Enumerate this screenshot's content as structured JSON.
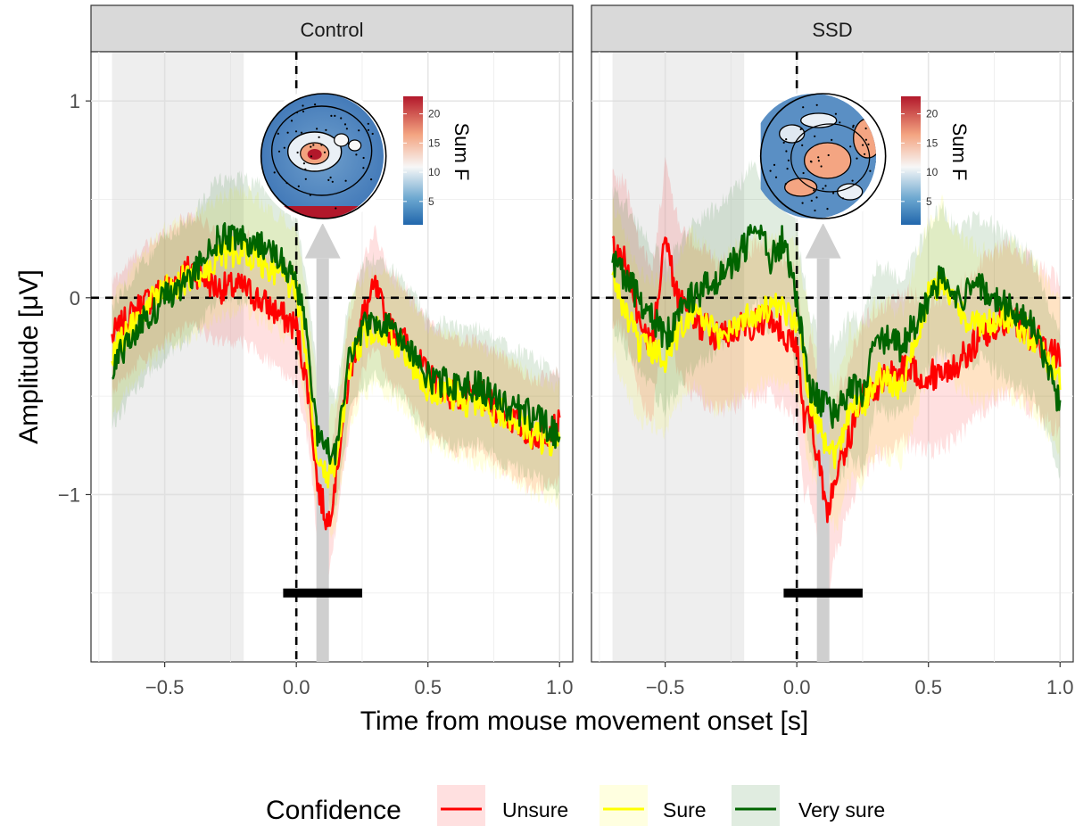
{
  "chart_data": {
    "type": "line",
    "xlabel": "Time from mouse movement onset [s]",
    "ylabel": "Amplitude [μV]",
    "xlim": [
      -0.78,
      1.05
    ],
    "ylim": [
      -1.85,
      1.25
    ],
    "x_ticks": [
      -0.5,
      0.0,
      0.5,
      1.0
    ],
    "x_tick_labels": [
      "−0.5",
      "0.0",
      "0.5",
      "1.0"
    ],
    "y_ticks": [
      -1,
      0,
      1
    ],
    "y_tick_labels": [
      "−1",
      "0",
      "1"
    ],
    "grid": true,
    "baseline_window": [
      -0.7,
      -0.2
    ],
    "reference_lines": {
      "x": 0,
      "y": 0
    },
    "legend": {
      "title": "Confidence",
      "position": "bottom",
      "entries": [
        {
          "name": "Unsure",
          "color": "#ff0000"
        },
        {
          "name": "Sure",
          "color": "#ffff00"
        },
        {
          "name": "Very sure",
          "color": "#006400"
        }
      ]
    },
    "colorbar": {
      "label": "Sum F",
      "ticks": [
        5,
        10,
        15,
        20
      ],
      "tick_labels": [
        "5",
        "10",
        "15",
        "20"
      ],
      "range": [
        1,
        23
      ],
      "colors": [
        "#2166ac",
        "#f7f7f7",
        "#b2182b"
      ]
    },
    "panels": [
      {
        "title": "Control",
        "significant_window": [
          -0.05,
          0.25
        ],
        "topomap_time": 0.1,
        "series": [
          {
            "name": "Unsure",
            "color": "#ff0000",
            "x": [
              -0.7,
              -0.6,
              -0.5,
              -0.4,
              -0.3,
              -0.2,
              -0.1,
              0.0,
              0.05,
              0.08,
              0.1,
              0.12,
              0.15,
              0.2,
              0.25,
              0.3,
              0.35,
              0.4,
              0.5,
              0.6,
              0.7,
              0.8,
              0.9,
              1.0
            ],
            "values": [
              -0.2,
              -0.05,
              0.05,
              0.15,
              0.05,
              0.05,
              -0.05,
              -0.15,
              -0.5,
              -0.95,
              -1.05,
              -1.15,
              -0.9,
              -0.4,
              -0.1,
              0.05,
              -0.15,
              -0.2,
              -0.4,
              -0.5,
              -0.5,
              -0.6,
              -0.7,
              -0.65
            ],
            "ci_width": 0.28
          },
          {
            "name": "Sure",
            "color": "#ffff00",
            "x": [
              -0.7,
              -0.6,
              -0.5,
              -0.4,
              -0.3,
              -0.2,
              -0.1,
              0.0,
              0.05,
              0.08,
              0.1,
              0.12,
              0.15,
              0.2,
              0.25,
              0.3,
              0.35,
              0.4,
              0.5,
              0.6,
              0.7,
              0.8,
              0.9,
              1.0
            ],
            "values": [
              -0.3,
              -0.1,
              0.05,
              0.1,
              0.2,
              0.25,
              0.15,
              0.05,
              -0.4,
              -0.8,
              -0.85,
              -0.9,
              -0.85,
              -0.35,
              -0.2,
              -0.15,
              -0.2,
              -0.25,
              -0.45,
              -0.5,
              -0.55,
              -0.6,
              -0.7,
              -0.75
            ],
            "ci_width": 0.3
          },
          {
            "name": "Very sure",
            "color": "#006400",
            "x": [
              -0.7,
              -0.6,
              -0.5,
              -0.4,
              -0.3,
              -0.2,
              -0.1,
              0.0,
              0.05,
              0.08,
              0.1,
              0.12,
              0.15,
              0.2,
              0.25,
              0.3,
              0.35,
              0.4,
              0.5,
              0.6,
              0.7,
              0.8,
              0.9,
              1.0
            ],
            "values": [
              -0.35,
              -0.15,
              0.0,
              0.1,
              0.3,
              0.3,
              0.25,
              0.1,
              -0.3,
              -0.7,
              -0.75,
              -0.75,
              -0.8,
              -0.3,
              -0.15,
              -0.1,
              -0.15,
              -0.2,
              -0.4,
              -0.45,
              -0.45,
              -0.55,
              -0.6,
              -0.7
            ],
            "ci_width": 0.3
          }
        ]
      },
      {
        "title": "SSD",
        "significant_window": [
          -0.05,
          0.25
        ],
        "topomap_time": 0.1,
        "series": [
          {
            "name": "Unsure",
            "color": "#ff0000",
            "x": [
              -0.7,
              -0.65,
              -0.6,
              -0.55,
              -0.5,
              -0.45,
              -0.4,
              -0.3,
              -0.2,
              -0.1,
              0.0,
              0.03,
              0.05,
              0.1,
              0.12,
              0.15,
              0.2,
              0.25,
              0.3,
              0.4,
              0.5,
              0.6,
              0.7,
              0.8,
              0.9,
              1.0
            ],
            "values": [
              0.25,
              0.2,
              -0.1,
              -0.25,
              0.3,
              0.0,
              -0.1,
              -0.2,
              -0.15,
              -0.1,
              -0.25,
              -0.65,
              -0.6,
              -0.95,
              -1.1,
              -0.9,
              -0.7,
              -0.5,
              -0.45,
              -0.35,
              -0.4,
              -0.35,
              -0.2,
              -0.1,
              -0.2,
              -0.3
            ],
            "ci_width": 0.38
          },
          {
            "name": "Sure",
            "color": "#ffff00",
            "x": [
              -0.7,
              -0.6,
              -0.5,
              -0.4,
              -0.3,
              -0.2,
              -0.1,
              0.0,
              0.05,
              0.1,
              0.15,
              0.2,
              0.25,
              0.3,
              0.4,
              0.5,
              0.55,
              0.6,
              0.7,
              0.8,
              0.9,
              1.0
            ],
            "values": [
              0.1,
              -0.25,
              -0.3,
              -0.05,
              -0.2,
              -0.1,
              -0.05,
              -0.1,
              -0.5,
              -0.7,
              -0.8,
              -0.55,
              -0.55,
              -0.4,
              -0.45,
              0.0,
              0.1,
              -0.05,
              -0.15,
              -0.1,
              -0.2,
              -0.4
            ],
            "ci_width": 0.38
          },
          {
            "name": "Very sure",
            "color": "#006400",
            "x": [
              -0.7,
              -0.6,
              -0.5,
              -0.4,
              -0.3,
              -0.2,
              -0.15,
              -0.1,
              -0.05,
              0.0,
              0.05,
              0.1,
              0.15,
              0.2,
              0.25,
              0.3,
              0.4,
              0.5,
              0.55,
              0.6,
              0.7,
              0.8,
              0.9,
              1.0
            ],
            "values": [
              0.2,
              0.0,
              -0.2,
              0.0,
              0.1,
              0.25,
              0.35,
              0.2,
              0.3,
              0.0,
              -0.45,
              -0.55,
              -0.6,
              -0.45,
              -0.5,
              -0.2,
              -0.25,
              0.0,
              0.1,
              0.0,
              0.05,
              -0.05,
              -0.15,
              -0.55
            ],
            "ci_width": 0.36
          }
        ]
      }
    ]
  }
}
